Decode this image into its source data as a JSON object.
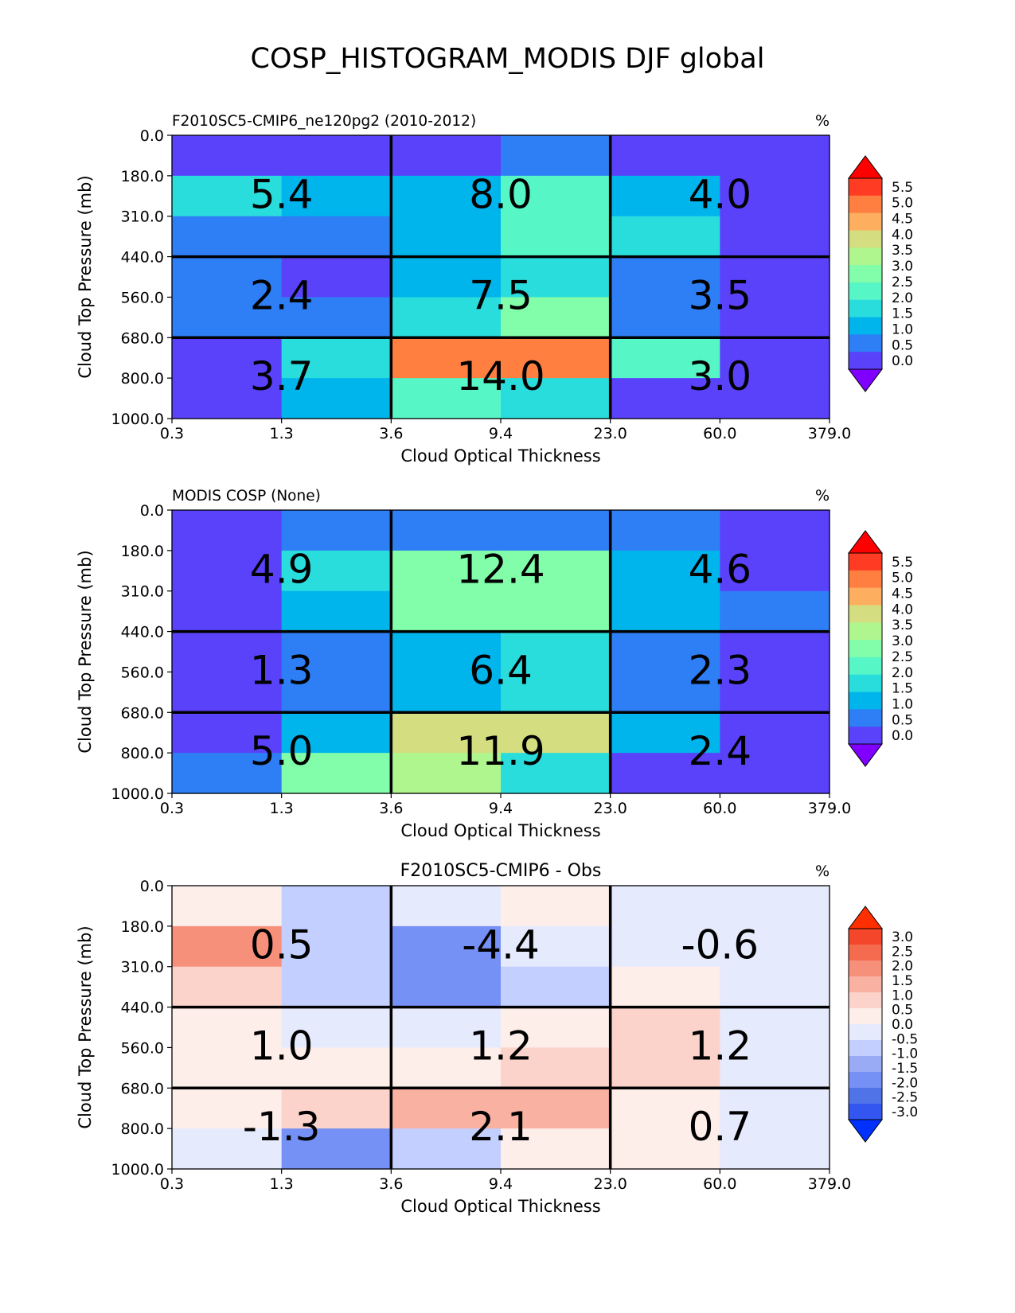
{
  "figure": {
    "title": "COSP_HISTOGRAM_MODIS DJF global"
  },
  "colors": {
    "rainbow_levels": [
      "#8000ff",
      "#5a42fb",
      "#2e7ef6",
      "#00b4ec",
      "#2adddd",
      "#56f6c6",
      "#82fda9",
      "#b0f68f",
      "#d4dd7f",
      "#fdaf5f",
      "#ff7f41",
      "#ff3c23",
      "#ff0000"
    ],
    "diff_levels": [
      "#0031ff",
      "#3456f0",
      "#5073e8",
      "#7691f5",
      "#9aabf5",
      "#c3cfff",
      "#e6eafd",
      "#fdeeea",
      "#fcd3ca",
      "#f9b1a1",
      "#f7907a",
      "#f56b4f",
      "#f3462a",
      "#ff2f00"
    ]
  },
  "chart_data": [
    {
      "type": "heatmap",
      "title_left": "F2010SC5-CMIP6_ne120pg2 (2010-2012)",
      "title_center": "",
      "units": "%",
      "xlabel": "Cloud Optical Thickness",
      "ylabel": "Cloud Top Pressure (mb)",
      "x_edges": [
        "0.3",
        "1.3",
        "3.6",
        "9.4",
        "23.0",
        "60.0",
        "379.0"
      ],
      "y_edges": [
        "0.0",
        "180.0",
        "310.0",
        "440.0",
        "560.0",
        "680.0",
        "800.0",
        "1000.0"
      ],
      "colorbar": {
        "kind": "rainbow",
        "ticks": [
          "0.0",
          "0.5",
          "1.0",
          "1.5",
          "2.0",
          "2.5",
          "3.0",
          "3.5",
          "4.0",
          "4.5",
          "5.0",
          "5.5"
        ]
      },
      "cells": [
        [
          1,
          1,
          1,
          2,
          1,
          1
        ],
        [
          4,
          3,
          3,
          5,
          3,
          1
        ],
        [
          2,
          2,
          3,
          5,
          4,
          1
        ],
        [
          2,
          1,
          3,
          4,
          2,
          1
        ],
        [
          2,
          2,
          4,
          6,
          2,
          1
        ],
        [
          1,
          4,
          10,
          10,
          5,
          1
        ],
        [
          1,
          3,
          5,
          4,
          1,
          1
        ]
      ],
      "group_values": [
        [
          "5.4",
          "8.0",
          "4.0"
        ],
        [
          "2.4",
          "7.5",
          "3.5"
        ],
        [
          "3.7",
          "14.0",
          "3.0"
        ]
      ]
    },
    {
      "type": "heatmap",
      "title_left": "MODIS COSP (None)",
      "title_center": "",
      "units": "%",
      "xlabel": "Cloud Optical Thickness",
      "ylabel": "Cloud Top Pressure (mb)",
      "x_edges": [
        "0.3",
        "1.3",
        "3.6",
        "9.4",
        "23.0",
        "60.0",
        "379.0"
      ],
      "y_edges": [
        "0.0",
        "180.0",
        "310.0",
        "440.0",
        "560.0",
        "680.0",
        "800.0",
        "1000.0"
      ],
      "colorbar": {
        "kind": "rainbow",
        "ticks": [
          "0.0",
          "0.5",
          "1.0",
          "1.5",
          "2.0",
          "2.5",
          "3.0",
          "3.5",
          "4.0",
          "4.5",
          "5.0",
          "5.5"
        ]
      },
      "cells": [
        [
          1,
          2,
          2,
          2,
          2,
          1
        ],
        [
          1,
          4,
          6,
          6,
          3,
          1
        ],
        [
          1,
          3,
          6,
          6,
          3,
          2
        ],
        [
          1,
          2,
          3,
          4,
          2,
          1
        ],
        [
          1,
          2,
          3,
          4,
          2,
          1
        ],
        [
          1,
          3,
          8,
          8,
          3,
          1
        ],
        [
          2,
          6,
          7,
          4,
          1,
          1
        ]
      ],
      "group_values": [
        [
          "4.9",
          "12.4",
          "4.6"
        ],
        [
          "1.3",
          "6.4",
          "2.3"
        ],
        [
          "5.0",
          "11.9",
          "2.4"
        ]
      ]
    },
    {
      "type": "heatmap",
      "title_left": "",
      "title_center": "F2010SC5-CMIP6 - Obs",
      "units": "%",
      "xlabel": "Cloud Optical Thickness",
      "ylabel": "Cloud Top Pressure (mb)",
      "x_edges": [
        "0.3",
        "1.3",
        "3.6",
        "9.4",
        "23.0",
        "60.0",
        "379.0"
      ],
      "y_edges": [
        "0.0",
        "180.0",
        "310.0",
        "440.0",
        "560.0",
        "680.0",
        "800.0",
        "1000.0"
      ],
      "colorbar": {
        "kind": "diff",
        "ticks": [
          "-3.0",
          "-2.5",
          "-2.0",
          "-1.5",
          "-1.0",
          "-0.5",
          "0.0",
          "0.5",
          "1.0",
          "1.5",
          "2.0",
          "2.5",
          "3.0"
        ]
      },
      "cells": [
        [
          7,
          5,
          6,
          7,
          6,
          6
        ],
        [
          10,
          5,
          3,
          6,
          6,
          6
        ],
        [
          8,
          5,
          3,
          5,
          7,
          6
        ],
        [
          7,
          6,
          6,
          7,
          8,
          6
        ],
        [
          7,
          7,
          7,
          8,
          8,
          6
        ],
        [
          7,
          8,
          9,
          9,
          7,
          6
        ],
        [
          6,
          3,
          5,
          7,
          7,
          6
        ]
      ],
      "group_values": [
        [
          "0.5",
          "-4.4",
          "-0.6"
        ],
        [
          "1.0",
          "1.2",
          "1.2"
        ],
        [
          "-1.3",
          "2.1",
          "0.7"
        ]
      ]
    }
  ]
}
